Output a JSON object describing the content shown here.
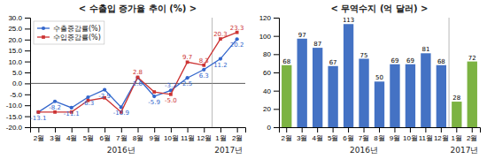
{
  "chart_data": [
    {
      "type": "line",
      "title": "< 수출입 증가율 추이 (%) >",
      "categories": [
        "2월",
        "3월",
        "4월",
        "5월",
        "6월",
        "7월",
        "8월",
        "9월",
        "10월",
        "11월",
        "12월",
        "1월",
        "2월"
      ],
      "series": [
        {
          "name": "수출증감률(%)",
          "color": "#3366CC",
          "marker": "circle",
          "values": [
            -13.1,
            -8.2,
            -11.1,
            -6.3,
            -2.9,
            -10.9,
            2.6,
            -5.9,
            -3.2,
            2.5,
            6.3,
            11.2,
            20.2
          ]
        },
        {
          "name": "수입증감률(%)",
          "color": "#CC3333",
          "marker": "square",
          "values": [
            -13.1,
            -13.1,
            -13.1,
            -7.8,
            -6.6,
            -13.1,
            2.8,
            -3.9,
            -5.0,
            9.7,
            8.3,
            20.3,
            23.3
          ],
          "value_labels": [
            null,
            null,
            null,
            null,
            null,
            null,
            "2.8",
            null,
            "-5.0",
            "9.7",
            "8.3",
            "20.3",
            "23.3"
          ]
        }
      ],
      "ylim": [
        -20.0,
        30.0
      ],
      "yticks": [
        {
          "value": -20.0,
          "label": "-20.0"
        },
        {
          "value": -15.0,
          "label": "-15.0"
        },
        {
          "value": -10.0,
          "label": "-10.0"
        },
        {
          "value": -5.0,
          "label": "-5.0"
        },
        {
          "value": 0.0,
          "label": "0.0"
        },
        {
          "value": 5.0,
          "label": "5.0"
        },
        {
          "value": 10.0,
          "label": "10.0"
        },
        {
          "value": 15.0,
          "label": "15.0"
        },
        {
          "value": 20.0,
          "label": "20.0"
        },
        {
          "value": 25.0,
          "label": "25.0"
        },
        {
          "value": 30.0,
          "label": "30.0"
        }
      ],
      "legend": "upper left",
      "data_labels": true,
      "annotations": [
        "2016년",
        "2017년"
      ]
    },
    {
      "type": "bar",
      "title": "< 무역수지 (억 달러) >",
      "categories": [
        "2월",
        "3월",
        "4월",
        "5월",
        "6월",
        "7월",
        "8월",
        "9월",
        "10월",
        "11월",
        "12월",
        "1월",
        "2월"
      ],
      "values": [
        68,
        97,
        87,
        67,
        113,
        75,
        50,
        69,
        69,
        81,
        68,
        28,
        72
      ],
      "colors": [
        "#7CB342",
        "#4472C4",
        "#4472C4",
        "#4472C4",
        "#4472C4",
        "#4472C4",
        "#4472C4",
        "#4472C4",
        "#4472C4",
        "#4472C4",
        "#4472C4",
        "#7CB342",
        "#7CB342"
      ],
      "ylim": [
        0,
        120
      ],
      "yticks": [
        0,
        20,
        40,
        60,
        80,
        100,
        120
      ],
      "data_labels": true,
      "annotations": [
        "2016년",
        "2017년"
      ]
    }
  ]
}
